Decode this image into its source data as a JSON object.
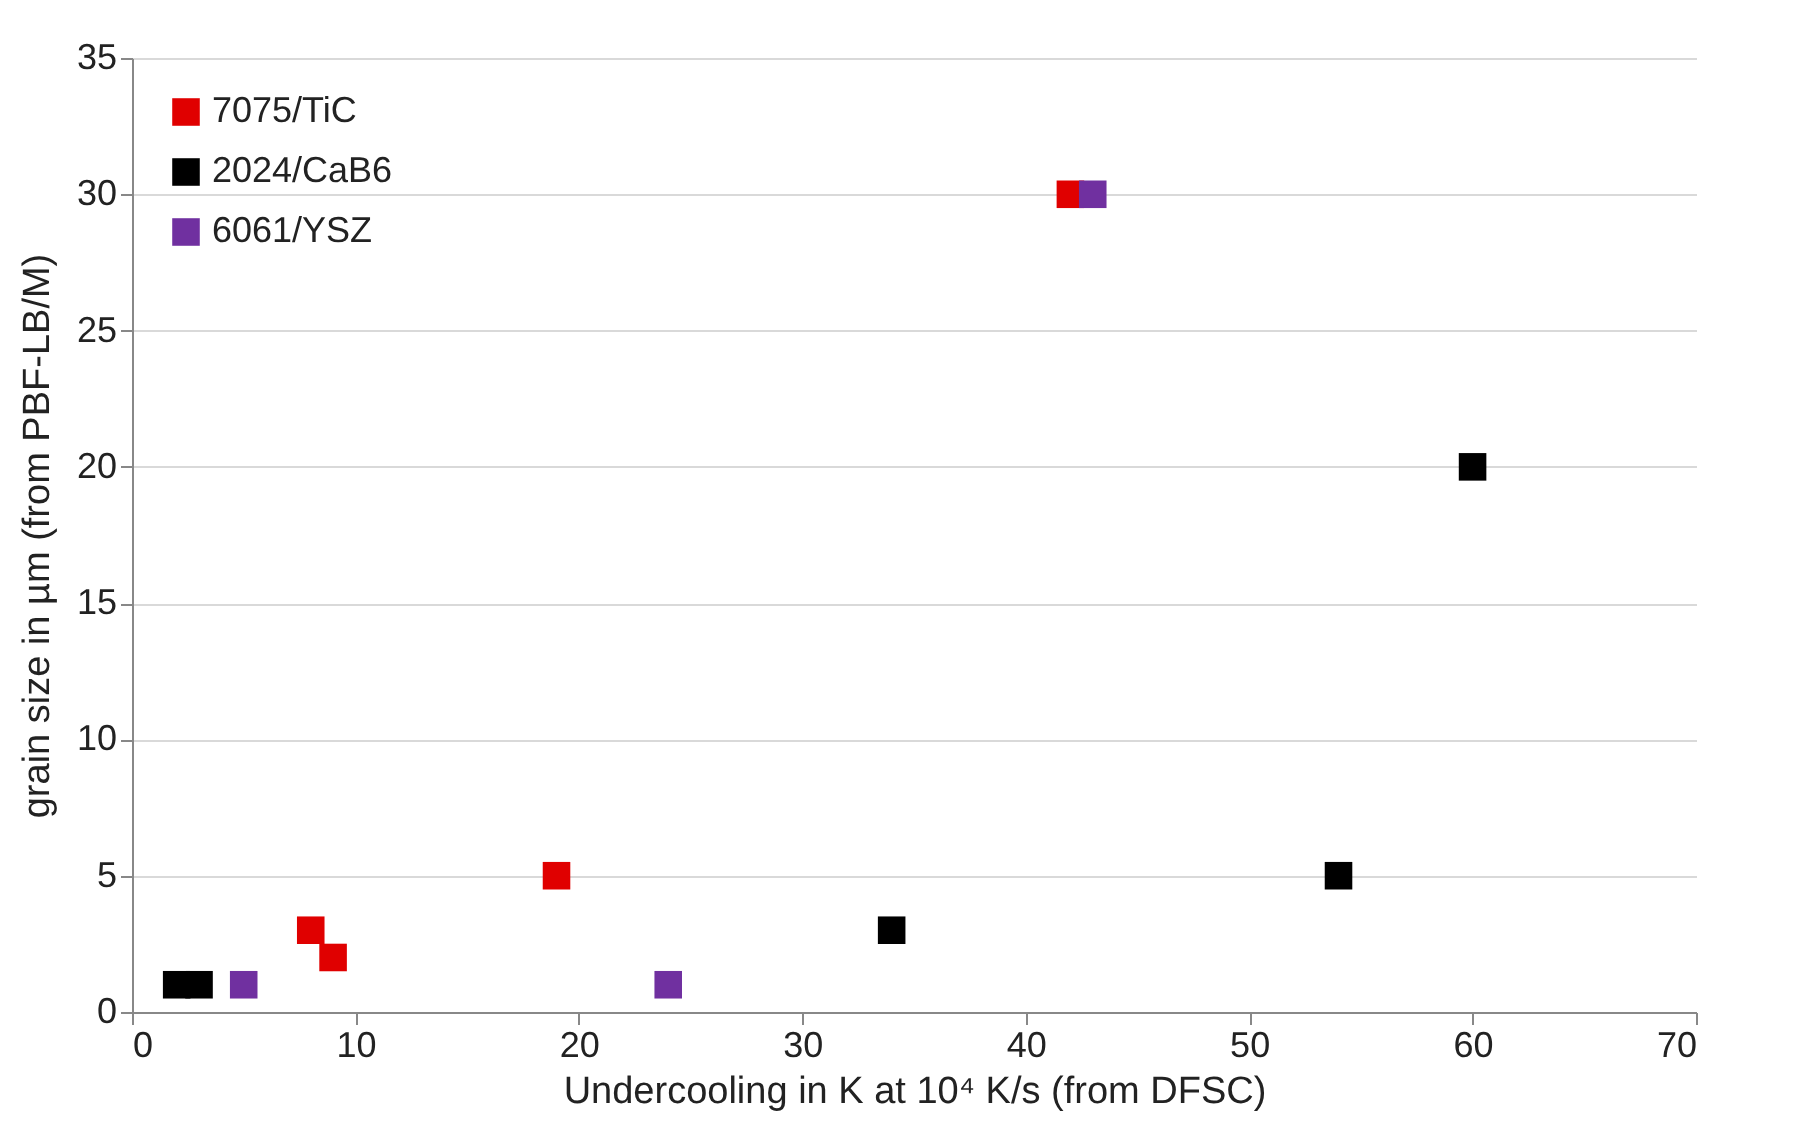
{
  "chart_data": {
    "type": "scatter",
    "xlabel": "Undercooling in K at 10⁴ K/s (from DFSC)",
    "ylabel": "grain size in µm (from PBF-LB/M)",
    "xlim": [
      0,
      70
    ],
    "xticks": [
      0,
      10,
      20,
      30,
      40,
      50,
      60,
      70
    ],
    "ylim": [
      0,
      35
    ],
    "yticks": [
      0,
      5,
      10,
      15,
      20,
      25,
      30,
      35
    ],
    "grid": "y",
    "legend": "top left",
    "marker": "square",
    "series": [
      {
        "name": "7075/TiC",
        "color": "#e00000",
        "x": [
          42,
          8,
          9,
          19
        ],
        "values": [
          30,
          3,
          2,
          5
        ]
      },
      {
        "name": "2024/CaB6",
        "color": "#000000",
        "x": [
          2,
          3,
          34,
          54,
          60
        ],
        "values": [
          1,
          1,
          3,
          5,
          20
        ]
      },
      {
        "name": "6061/YSZ",
        "color": "#7030a0",
        "x": [
          5,
          24,
          43
        ],
        "values": [
          1,
          1,
          30
        ]
      }
    ]
  }
}
